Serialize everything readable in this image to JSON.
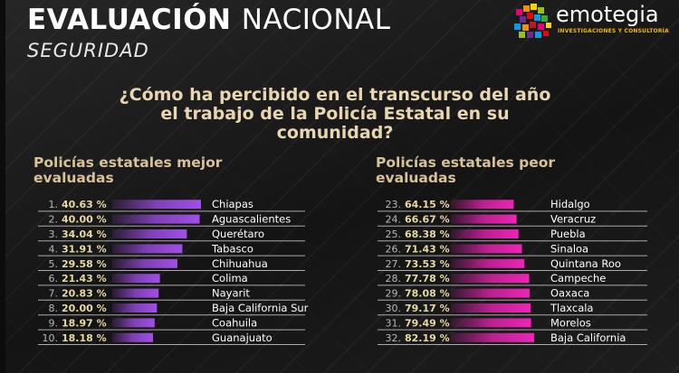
{
  "header": {
    "title_bold": "EVALUACIÓN",
    "title_light": "NACIONAL",
    "subtitle": "SEGURIDAD"
  },
  "logo": {
    "name": "emotegia",
    "tagline": "INVESTIGACIONES Y CONSULTORÍA"
  },
  "question": "¿Cómo ha percibido en el transcurso del año el trabajo de la Policía Estatal en su comunidad?",
  "colors": {
    "best_bar": "#a24ee8",
    "worst_bar": "#ef24b7",
    "percent_text": "#e9d8a6",
    "heading_text": "#d9c19a"
  },
  "chart_data": [
    {
      "type": "bar",
      "title": "Policías estatales mejor evaluadas",
      "ranks": [
        "1.",
        "2.",
        "3.",
        "4.",
        "5.",
        "6.",
        "7.",
        "8.",
        "9.",
        "10."
      ],
      "categories": [
        "Chiapas",
        "Aguascalientes",
        "Querétaro",
        "Tabasco",
        "Chihuahua",
        "Colima",
        "Nayarit",
        "Baja California Sur",
        "Coahuila",
        "Guanajuato"
      ],
      "value_labels": [
        "40.63 %",
        "40.00 %",
        "34.04 %",
        "31.91 %",
        "29.58 %",
        "21.43 %",
        "20.83 %",
        "20.00 %",
        "18.97 %",
        "18.18 %"
      ],
      "values": [
        40.63,
        40.0,
        34.04,
        31.91,
        29.58,
        21.43,
        20.83,
        20.0,
        18.97,
        18.18
      ],
      "xlim": [
        0,
        40.63
      ],
      "orientation": "horizontal"
    },
    {
      "type": "bar",
      "title": "Policías estatales peor evaluadas",
      "ranks": [
        "23.",
        "24.",
        "25.",
        "26.",
        "27.",
        "28.",
        "29.",
        "30.",
        "31.",
        "32."
      ],
      "categories": [
        "Hidalgo",
        "Veracruz",
        "Puebla",
        "Sinaloa",
        "Quintana Roo",
        "Campeche",
        "Oaxaca",
        "Tlaxcala",
        "Morelos",
        "Baja California"
      ],
      "value_labels": [
        "64.15 %",
        "66.67 %",
        "68.38 %",
        "71.43 %",
        "73.53 %",
        "77.78 %",
        "78.08 %",
        "79.17 %",
        "79.49 %",
        "82.19 %"
      ],
      "values": [
        64.15,
        66.67,
        68.38,
        71.43,
        73.53,
        77.78,
        78.08,
        79.17,
        79.49,
        82.19
      ],
      "xlim": [
        55,
        82.19
      ],
      "orientation": "horizontal"
    }
  ]
}
